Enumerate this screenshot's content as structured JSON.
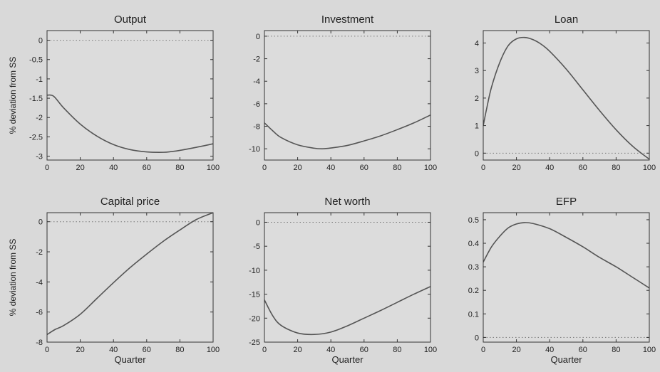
{
  "figure": {
    "ylabel": "% deviation from SS",
    "xlabel": "Quarter",
    "colors": {
      "background": "#d9d9d9",
      "plot_area": "#dcdcdc",
      "line": "#555555",
      "zero_line": "#777777",
      "frame": "#333333"
    }
  },
  "chart_data": [
    {
      "type": "line",
      "title": "Output",
      "xlabel": "",
      "ylabel": "% deviation from SS",
      "xlim": [
        0,
        100
      ],
      "ylim": [
        -3.1,
        0.25
      ],
      "xticks": [
        0,
        20,
        40,
        60,
        80,
        100
      ],
      "yticks": [
        0,
        -0.5,
        -1,
        -1.5,
        -2,
        -2.5,
        -3
      ],
      "ytick_labels": [
        "0",
        "-0.5",
        "-1",
        "-1.5",
        "-2",
        "-2.5",
        "-3"
      ],
      "zero_line": true,
      "grid": false,
      "x": [
        0,
        4,
        10,
        20,
        30,
        40,
        50,
        60,
        70,
        75,
        80,
        90,
        100
      ],
      "values": [
        -1.42,
        -1.45,
        -1.75,
        -2.17,
        -2.48,
        -2.7,
        -2.83,
        -2.89,
        -2.9,
        -2.88,
        -2.85,
        -2.77,
        -2.68
      ]
    },
    {
      "type": "line",
      "title": "Investment",
      "xlabel": "",
      "ylabel": "",
      "xlim": [
        0,
        100
      ],
      "ylim": [
        -11,
        0.5
      ],
      "xticks": [
        0,
        20,
        40,
        60,
        80,
        100
      ],
      "yticks": [
        0,
        -2,
        -4,
        -6,
        -8,
        -10
      ],
      "ytick_labels": [
        "0",
        "-2",
        "-4",
        "-6",
        "-8",
        "-10"
      ],
      "zero_line": true,
      "grid": false,
      "x": [
        0,
        5,
        10,
        20,
        30,
        35,
        40,
        50,
        60,
        70,
        80,
        90,
        100
      ],
      "values": [
        -7.7,
        -8.4,
        -9.0,
        -9.65,
        -9.95,
        -10.0,
        -9.93,
        -9.7,
        -9.3,
        -8.85,
        -8.3,
        -7.7,
        -7.0
      ]
    },
    {
      "type": "line",
      "title": "Loan",
      "xlabel": "",
      "ylabel": "",
      "xlim": [
        0,
        100
      ],
      "ylim": [
        -0.25,
        4.45
      ],
      "xticks": [
        0,
        20,
        40,
        60,
        80,
        100
      ],
      "yticks": [
        0,
        1,
        2,
        3,
        4
      ],
      "ytick_labels": [
        "0",
        "1",
        "2",
        "3",
        "4"
      ],
      "zero_line": true,
      "grid": false,
      "x": [
        0,
        2,
        5,
        10,
        15,
        20,
        25,
        30,
        35,
        40,
        50,
        60,
        70,
        80,
        90,
        100
      ],
      "values": [
        1.0,
        1.6,
        2.4,
        3.3,
        3.9,
        4.15,
        4.2,
        4.12,
        3.95,
        3.7,
        3.05,
        2.3,
        1.55,
        0.85,
        0.25,
        -0.22
      ]
    },
    {
      "type": "line",
      "title": "Capital price",
      "xlabel": "Quarter",
      "ylabel": "% deviation from SS",
      "xlim": [
        0,
        100
      ],
      "ylim": [
        -8,
        0.6
      ],
      "xticks": [
        0,
        20,
        40,
        60,
        80,
        100
      ],
      "yticks": [
        0,
        -2,
        -4,
        -6,
        -8
      ],
      "ytick_labels": [
        "0",
        "-2",
        "-4",
        "-6",
        "-8"
      ],
      "zero_line": true,
      "grid": false,
      "x": [
        0,
        5,
        10,
        20,
        30,
        40,
        50,
        60,
        70,
        80,
        90,
        100
      ],
      "values": [
        -7.5,
        -7.15,
        -6.9,
        -6.15,
        -5.1,
        -4.05,
        -3.05,
        -2.15,
        -1.3,
        -0.55,
        0.15,
        0.6
      ]
    },
    {
      "type": "line",
      "title": "Net worth",
      "xlabel": "Quarter",
      "ylabel": "",
      "xlim": [
        0,
        100
      ],
      "ylim": [
        -25,
        2
      ],
      "xticks": [
        0,
        20,
        40,
        60,
        80,
        100
      ],
      "yticks": [
        0,
        -5,
        -10,
        -15,
        -20,
        -25
      ],
      "ytick_labels": [
        "0",
        "-5",
        "-10",
        "-15",
        "-20",
        "-25"
      ],
      "zero_line": true,
      "grid": false,
      "x": [
        0,
        5,
        10,
        20,
        30,
        40,
        50,
        60,
        70,
        80,
        90,
        100
      ],
      "values": [
        -16.2,
        -19.5,
        -21.5,
        -23.1,
        -23.4,
        -22.9,
        -21.6,
        -20.0,
        -18.4,
        -16.7,
        -15.0,
        -13.4
      ]
    },
    {
      "type": "line",
      "title": "EFP",
      "xlabel": "Quarter",
      "ylabel": "",
      "xlim": [
        0,
        100
      ],
      "ylim": [
        -0.02,
        0.53
      ],
      "xticks": [
        0,
        20,
        40,
        60,
        80,
        100
      ],
      "yticks": [
        0,
        0.1,
        0.2,
        0.3,
        0.4,
        0.5
      ],
      "ytick_labels": [
        "0",
        "0.1",
        "0.2",
        "0.3",
        "0.4",
        "0.5"
      ],
      "zero_line": true,
      "grid": false,
      "x": [
        0,
        5,
        10,
        15,
        20,
        25,
        30,
        40,
        50,
        60,
        70,
        80,
        90,
        100
      ],
      "values": [
        0.32,
        0.385,
        0.43,
        0.465,
        0.482,
        0.488,
        0.484,
        0.462,
        0.425,
        0.385,
        0.34,
        0.3,
        0.255,
        0.21
      ]
    }
  ]
}
